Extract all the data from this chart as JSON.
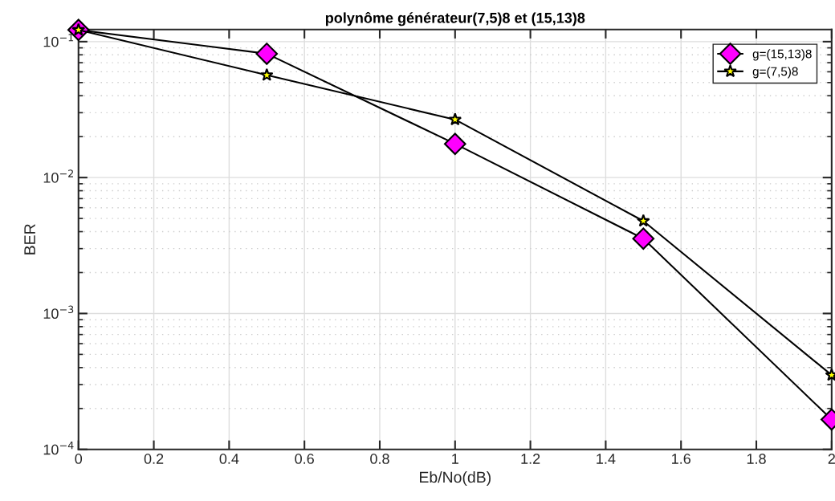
{
  "chart_data": {
    "type": "line",
    "title": "polynôme générateur(7,5)8 et (15,13)8",
    "xlabel": "Eb/No(dB)",
    "ylabel": "BER",
    "x": [
      0,
      0.5,
      1,
      1.5,
      2
    ],
    "series": [
      {
        "name": "g=(15,13)8",
        "color": "#ff00ff",
        "marker": "diamond",
        "values": [
          0.122,
          0.0815,
          0.0177,
          0.00355,
          0.000166
        ]
      },
      {
        "name": "g=(7,5)8",
        "color": "#ffff00",
        "marker": "star",
        "values": [
          0.122,
          0.0567,
          0.0267,
          0.00479,
          0.000352
        ]
      }
    ],
    "log": "y",
    "xlim": [
      0,
      2
    ],
    "xticks": [
      0,
      0.2,
      0.4,
      0.6,
      0.8,
      1,
      1.2,
      1.4,
      1.6,
      1.8,
      2
    ],
    "ylim": [
      0.0001,
      0.1227
    ],
    "yticks": [
      {
        "value": 0.0001,
        "label": "10$^{−4}$"
      },
      {
        "value": 0.001,
        "label": "10$^{−3}$"
      },
      {
        "value": 0.01,
        "label": "10$^{−2}$"
      },
      {
        "value": 0.1,
        "label": "10$^{−1}$"
      }
    ],
    "grid": true,
    "legend": "top right",
    "line_style": "solid"
  }
}
